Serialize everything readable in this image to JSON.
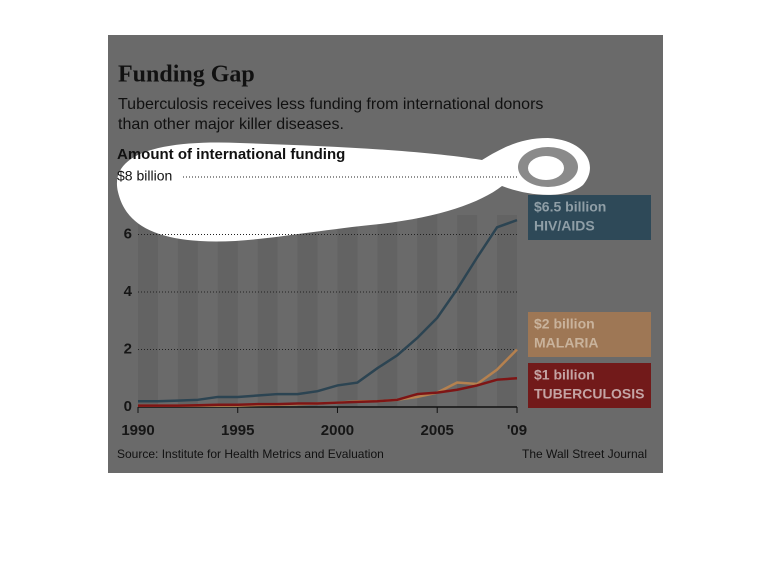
{
  "chart_data": {
    "type": "line",
    "title": "Funding Gap",
    "subtitle": [
      "Tuberculosis receives less funding from international donors",
      "than other major killer diseases."
    ],
    "y_label": "Amount of international funding",
    "source": "Source: Institute for Health Metrics and Evaluation",
    "credit": "The Wall Street Journal",
    "x": [
      1990,
      1991,
      1992,
      1993,
      1994,
      1995,
      1996,
      1997,
      1998,
      1999,
      2000,
      2001,
      2002,
      2003,
      2004,
      2005,
      2006,
      2007,
      2008,
      2009
    ],
    "series": [
      {
        "name": "HIV/AIDS",
        "end_label": "$6.5 billion",
        "color": "#2c4452",
        "box_color": "#2e4958",
        "label_color": "#8f9ea6",
        "values": [
          0.2,
          0.2,
          0.22,
          0.25,
          0.35,
          0.35,
          0.4,
          0.45,
          0.45,
          0.55,
          0.75,
          0.85,
          1.35,
          1.8,
          2.4,
          3.1,
          4.1,
          5.2,
          6.25,
          6.5
        ]
      },
      {
        "name": "MALARIA",
        "end_label": "$2 billion",
        "color": "#b5814f",
        "box_color": "#9e7755",
        "label_color": "#c9b39c",
        "values": [
          0.05,
          0.05,
          0.05,
          0.05,
          0.05,
          0.05,
          0.07,
          0.08,
          0.1,
          0.12,
          0.15,
          0.2,
          0.2,
          0.25,
          0.35,
          0.5,
          0.85,
          0.8,
          1.3,
          2.0
        ]
      },
      {
        "name": "TUBERCULOSIS",
        "end_label": "$1 billion",
        "color": "#7e1515",
        "box_color": "#721a1a",
        "label_color": "#c4a4a4",
        "values": [
          0.05,
          0.05,
          0.05,
          0.06,
          0.08,
          0.08,
          0.1,
          0.1,
          0.12,
          0.12,
          0.15,
          0.18,
          0.2,
          0.25,
          0.45,
          0.5,
          0.6,
          0.75,
          0.95,
          1.0
        ]
      }
    ],
    "xlim": [
      1990,
      2009
    ],
    "xticks": [
      1990,
      1995,
      2000,
      2005,
      {
        "value": 2009,
        "label": "'09"
      }
    ],
    "ylim": [
      0,
      8
    ],
    "yticks": [
      0,
      2,
      4,
      6,
      {
        "value": 8,
        "label": "$8 billion"
      }
    ],
    "grid": true
  }
}
